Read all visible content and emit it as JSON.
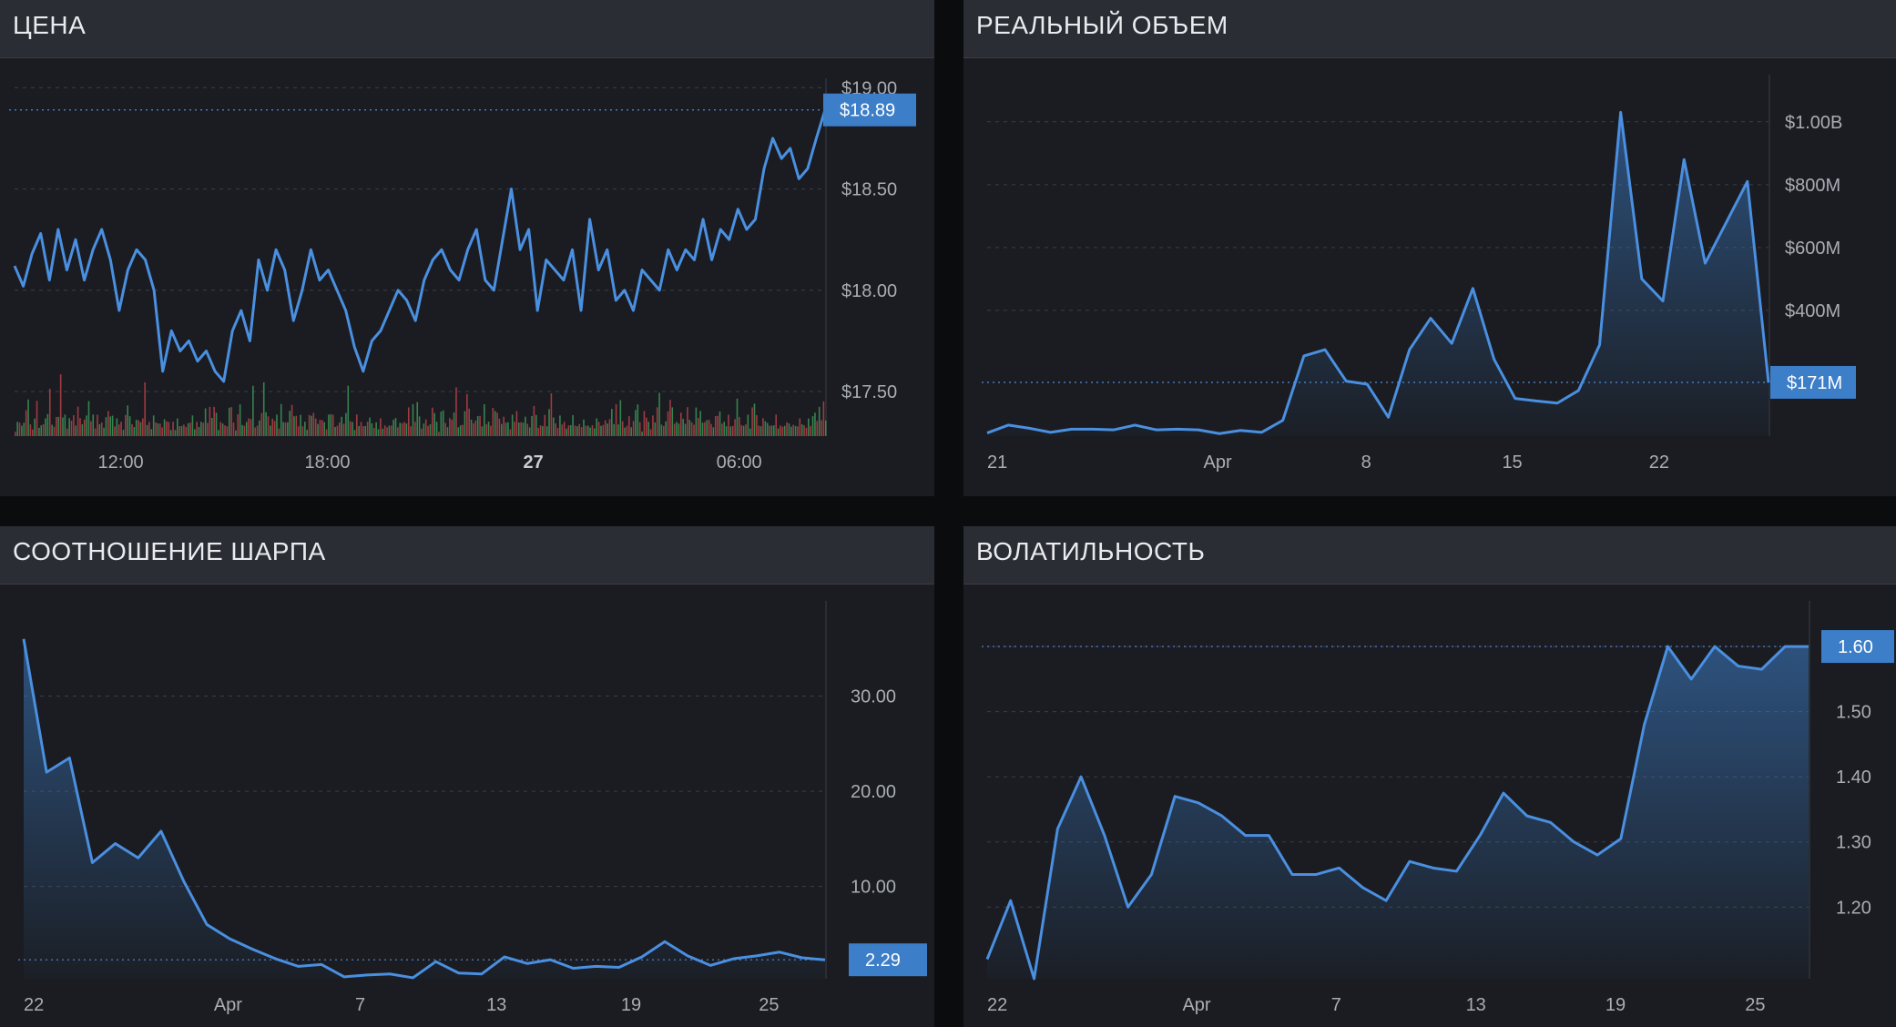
{
  "colors": {
    "accent": "#3d7ec9",
    "line": "#4a8fe0",
    "panel_bg": "#1a1c21",
    "header_bg": "#2a2d34",
    "grid": "#3a3e46",
    "vol_up": "#3e9e5a",
    "vol_down": "#c0434b"
  },
  "panels": {
    "price": {
      "title": "ЦЕНА",
      "chart_data": {
        "type": "line",
        "title": "ЦЕНА",
        "y_ticks": [
          "$17.50",
          "$18.00",
          "$18.50",
          "$19.00"
        ],
        "y_tick_values": [
          17.5,
          18.0,
          18.5,
          19.0
        ],
        "ylim": [
          17.28,
          19.1
        ],
        "x_ticks": [
          "12:00",
          "18:00",
          "27",
          "06:00"
        ],
        "x_tick_positions": [
          0.131,
          0.386,
          0.64,
          0.894
        ],
        "current_value_label": "$18.89",
        "current_value": 18.89,
        "values": [
          18.12,
          18.02,
          18.18,
          18.28,
          18.05,
          18.3,
          18.1,
          18.25,
          18.05,
          18.2,
          18.3,
          18.15,
          17.9,
          18.1,
          18.2,
          18.15,
          18.0,
          17.6,
          17.8,
          17.7,
          17.75,
          17.65,
          17.7,
          17.6,
          17.55,
          17.8,
          17.9,
          17.75,
          18.15,
          18.0,
          18.2,
          18.1,
          17.85,
          18.0,
          18.2,
          18.05,
          18.1,
          18.0,
          17.9,
          17.72,
          17.6,
          17.75,
          17.8,
          17.9,
          18.0,
          17.95,
          17.85,
          18.05,
          18.15,
          18.2,
          18.1,
          18.05,
          18.2,
          18.3,
          18.05,
          18.0,
          18.25,
          18.5,
          18.2,
          18.3,
          17.9,
          18.15,
          18.1,
          18.05,
          18.2,
          17.9,
          18.35,
          18.1,
          18.2,
          17.95,
          18.0,
          17.9,
          18.1,
          18.05,
          18.0,
          18.2,
          18.1,
          18.2,
          18.15,
          18.35,
          18.15,
          18.3,
          18.25,
          18.4,
          18.3,
          18.35,
          18.6,
          18.75,
          18.65,
          18.7,
          18.55,
          18.6,
          18.75,
          18.89
        ]
      },
      "volume_bars": [
        0.12,
        0.2,
        0.3,
        0.15,
        0.25,
        0.4,
        0.6,
        0.2,
        0.1,
        0.35,
        0.5,
        0.2,
        0.15,
        0.3,
        0.25,
        0.45,
        0.7,
        0.2,
        0.15,
        0.3,
        0.35,
        0.9,
        0.4,
        0.3,
        0.2,
        0.25,
        0.35,
        0.3,
        0.2,
        0.45,
        0.3,
        0.2,
        0.25,
        0.4,
        0.5,
        0.35,
        0.3,
        0.2,
        0.3,
        0.25,
        0.2,
        0.15,
        0.3,
        0.4,
        0.35,
        0.3,
        0.2,
        0.25,
        0.3,
        0.2,
        0.15,
        0.3,
        0.6,
        0.3,
        0.2,
        0.15,
        0.25,
        0.3,
        0.2,
        0.4,
        0.75,
        0.3,
        0.2,
        0.15,
        0.3,
        0.25,
        0.2,
        0.2,
        0.15,
        0.25,
        0.3,
        0.2,
        0.15,
        0.2,
        0.15,
        0.25,
        0.2,
        0.15,
        0.2,
        0.15,
        0.2,
        0.25,
        0.3,
        0.15,
        0.2,
        0.25,
        0.2,
        0.3,
        0.4,
        0.25,
        0.45,
        0.3,
        0.5,
        0.35
      ]
    },
    "volume": {
      "title": "РЕАЛЬНЫЙ ОБЪЕМ",
      "chart_data": {
        "type": "area",
        "title": "РЕАЛЬНЫЙ ОБЪЕМ",
        "y_ticks": [
          "$400M",
          "$600M",
          "$800M",
          "$1.00B"
        ],
        "y_tick_values": [
          400,
          600,
          800,
          1000
        ],
        "ylim": [
          0,
          1150
        ],
        "y_unit": "millions USD",
        "x_ticks": [
          "21",
          "Apr",
          "8",
          "15",
          "22"
        ],
        "x_tick_positions": [
          0.0,
          0.295,
          0.485,
          0.672,
          0.86
        ],
        "current_value_label": "$171M",
        "current_value": 171,
        "values": [
          10,
          35,
          25,
          12,
          22,
          22,
          20,
          35,
          20,
          22,
          20,
          8,
          18,
          12,
          50,
          255,
          275,
          175,
          165,
          60,
          275,
          375,
          295,
          470,
          245,
          120,
          112,
          105,
          145,
          290,
          1030,
          500,
          430,
          880,
          550,
          680,
          810,
          170
        ]
      }
    },
    "sharpe": {
      "title": "СООТНОШЕНИЕ ШАРПА",
      "chart_data": {
        "type": "area",
        "title": "СООТНОШЕНИЕ ШАРПА",
        "y_ticks": [
          "10.00",
          "20.00",
          "30.00"
        ],
        "y_tick_values": [
          10,
          20,
          30
        ],
        "ylim": [
          0.3,
          40
        ],
        "x_ticks": [
          "22",
          "Apr",
          "7",
          "13",
          "19",
          "25"
        ],
        "x_tick_positions": [
          0.0,
          0.255,
          0.42,
          0.59,
          0.758,
          0.93
        ],
        "current_value_label": "2.29",
        "current_value": 2.29,
        "values": [
          36,
          22,
          23.5,
          12.5,
          14.5,
          13,
          15.8,
          10.5,
          6,
          4.5,
          3.4,
          2.4,
          1.6,
          1.8,
          0.5,
          0.7,
          0.8,
          0.4,
          2.1,
          0.9,
          0.8,
          2.6,
          1.9,
          2.3,
          1.4,
          1.6,
          1.5,
          2.6,
          4.2,
          2.7,
          1.7,
          2.4,
          2.7,
          3.1,
          2.5,
          2.29
        ]
      }
    },
    "volatility": {
      "title": "ВОЛАТИЛЬНОСТЬ",
      "chart_data": {
        "type": "area",
        "title": "ВОЛАТИЛЬНОСТЬ",
        "y_ticks": [
          "1.20",
          "1.30",
          "1.40",
          "1.50",
          "1.60"
        ],
        "y_tick_values": [
          1.2,
          1.3,
          1.4,
          1.5,
          1.6
        ],
        "ylim": [
          1.09,
          1.67
        ],
        "x_ticks": [
          "22",
          "Apr",
          "7",
          "13",
          "19",
          "25"
        ],
        "x_tick_positions": [
          0.0,
          0.255,
          0.425,
          0.595,
          0.765,
          0.935
        ],
        "current_value_label": "1.60",
        "current_value": 1.6,
        "values": [
          1.12,
          1.21,
          1.09,
          1.32,
          1.4,
          1.31,
          1.2,
          1.25,
          1.37,
          1.36,
          1.34,
          1.31,
          1.31,
          1.25,
          1.25,
          1.26,
          1.23,
          1.21,
          1.27,
          1.26,
          1.255,
          1.31,
          1.375,
          1.34,
          1.33,
          1.3,
          1.28,
          1.305,
          1.48,
          1.6,
          1.55,
          1.6,
          1.57,
          1.565,
          1.6,
          1.6
        ]
      }
    }
  }
}
